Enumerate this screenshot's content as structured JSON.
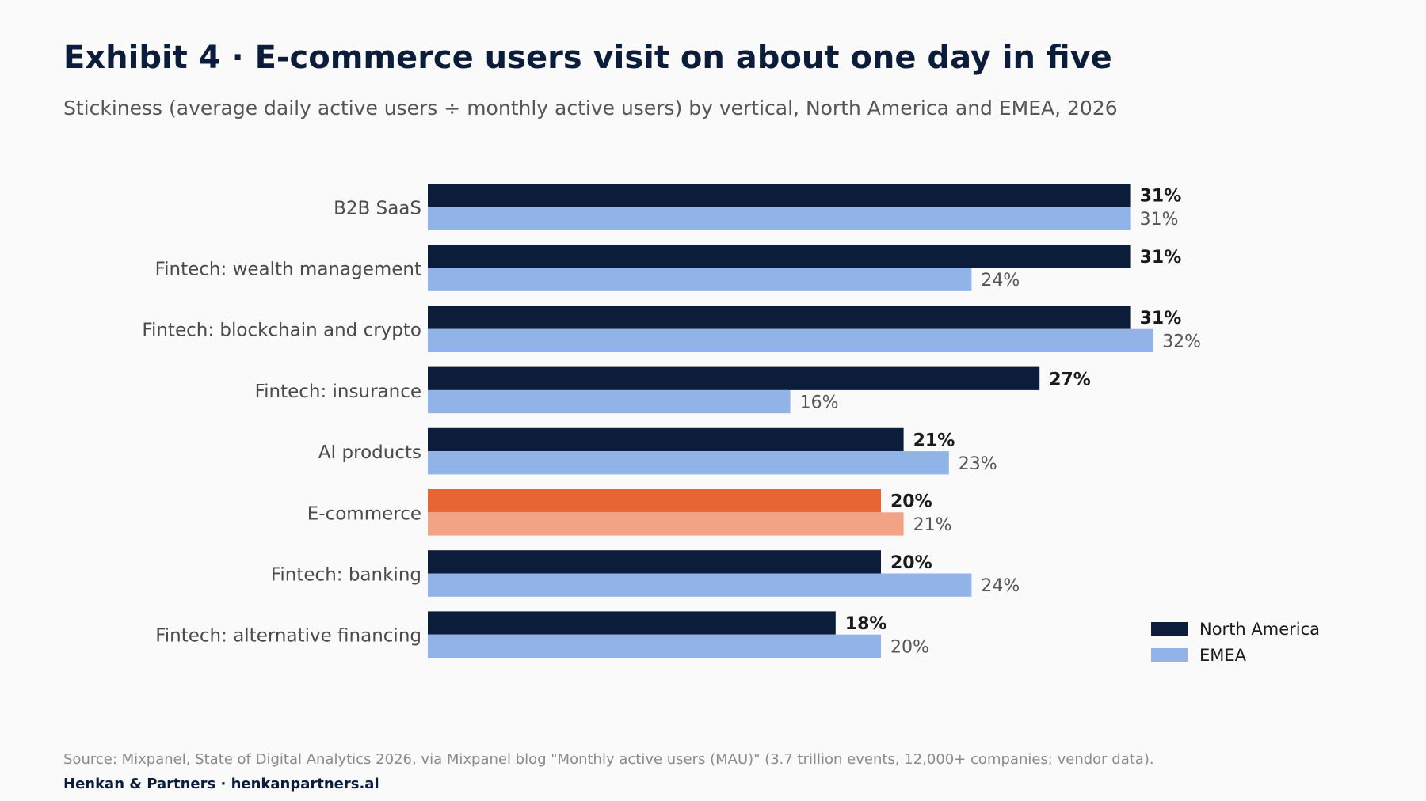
{
  "title": "Exhibit 4 · E-commerce users visit on about one day in five",
  "subtitle": "Stickiness (average daily active users ÷ monthly active users) by vertical, North America and EMEA, 2026",
  "source": "Source: Mixpanel, State of Digital Analytics 2026, via Mixpanel blog \"Monthly active users (MAU)\" (3.7 trillion events, 12,000+ companies; vendor data).",
  "brand": "Henkan & Partners · henkanpartners.ai",
  "colors": {
    "north_america": "#0b1d3a",
    "emea": "#92b3e8",
    "highlight_north_america": "#e86533",
    "highlight_emea": "#f3a385"
  },
  "chart_data": {
    "type": "bar",
    "orientation": "horizontal",
    "categories": [
      "B2B SaaS",
      "Fintech: wealth management",
      "Fintech: blockchain and crypto",
      "Fintech: insurance",
      "AI products",
      "E-commerce",
      "Fintech: banking",
      "Fintech: alternative financing"
    ],
    "series": [
      {
        "name": "North America",
        "values": [
          31,
          31,
          31,
          27,
          21,
          20,
          20,
          18
        ]
      },
      {
        "name": "EMEA",
        "values": [
          31,
          24,
          32,
          16,
          23,
          21,
          24,
          20
        ]
      }
    ],
    "value_suffix": "%",
    "highlight_category": "E-commerce",
    "xlim": [
      0,
      32
    ],
    "grid": false,
    "legend": "bottom-right"
  }
}
